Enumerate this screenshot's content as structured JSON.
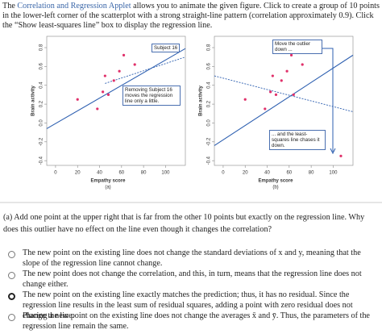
{
  "intro": {
    "before": "The ",
    "link": "Correlation and Regression Applet",
    "after": " allows you to animate the given figure. Click to create a group of 10 points in the lower-left corner of the scatterplot with a strong straight-line pattern (correlation approximately 0.9). Click the “Show least-squares line” box to display the regression line."
  },
  "figure": {
    "charts": [
      {
        "type": "scatter",
        "x_label": "Empathy score",
        "y_label": "Brain activity",
        "caption": "(a)",
        "xlim": [
          -8,
          118
        ],
        "ylim": [
          -0.45,
          0.92
        ],
        "xticks": [
          0,
          20,
          40,
          60,
          80,
          100
        ],
        "yticks": [
          -0.4,
          -0.2,
          {
            "value": 0,
            "label": "0.0"
          },
          0.2,
          0.4,
          0.6,
          0.8
        ],
        "points": {
          "x": [
            20,
            38,
            43,
            45,
            48,
            53,
            58,
            62,
            64,
            72,
            107
          ],
          "y": [
            0.25,
            0.15,
            0.33,
            0.5,
            0.3,
            0.45,
            0.55,
            0.72,
            0.3,
            0.62,
            0.79
          ]
        },
        "lines": [
          {
            "style": "solid",
            "x": [
              -8,
              118
            ],
            "y": [
              -0.06,
              0.79
            ]
          },
          {
            "style": "dashed",
            "x": [
              45,
              118
            ],
            "y": [
              0.42,
              0.7
            ]
          }
        ],
        "annotations": [
          "Subject 16",
          "Removing Subject 16 moves the regression line only a little."
        ]
      },
      {
        "type": "scatter",
        "x_label": "Empathy score",
        "y_label": "Brain activity",
        "caption": "(b)",
        "xlim": [
          -8,
          118
        ],
        "ylim": [
          -0.45,
          0.92
        ],
        "xticks": [
          0,
          20,
          40,
          60,
          80,
          100
        ],
        "yticks": [
          -0.4,
          -0.2,
          {
            "value": 0,
            "label": "0.0"
          },
          0.2,
          0.4,
          0.6,
          0.8
        ],
        "points": {
          "x": [
            20,
            38,
            43,
            45,
            48,
            53,
            58,
            62,
            64,
            72,
            107
          ],
          "y": [
            0.25,
            0.15,
            0.33,
            0.5,
            0.3,
            0.45,
            0.55,
            0.72,
            0.3,
            0.62,
            -0.35
          ]
        },
        "lines": [
          {
            "style": "solid",
            "x": [
              -8,
              118
            ],
            "y": [
              -0.24,
              0.72
            ]
          },
          {
            "style": "dashed",
            "x": [
              -8,
              118
            ],
            "y": [
              0.5,
              0.12
            ]
          }
        ],
        "annotations": [
          "Move the outlier down ...",
          "... and the least-squares line chases it down."
        ]
      }
    ]
  },
  "question": "(a) Add one point at the upper right that is far from the other 10 points but exactly on the regression line. Why does this outlier have no effect on the line even though it changes the correlation?",
  "options": [
    "The new point on the existing line does not change the standard deviations of x and y, meaning that the slope of the regression line cannot change.",
    "The new point does not change the correlation, and this, in turn, means that the regression line does not change either.",
    "The new point on the existing line exactly matches the prediction; thus, it has no residual. Since the regression line results in the least sum of residual squares, adding a point with zero residual does not change the line.",
    "Placing a new point on the existing line does not change the averages x̄ and ȳ. Thus, the parameters of the regression line remain the same."
  ]
}
